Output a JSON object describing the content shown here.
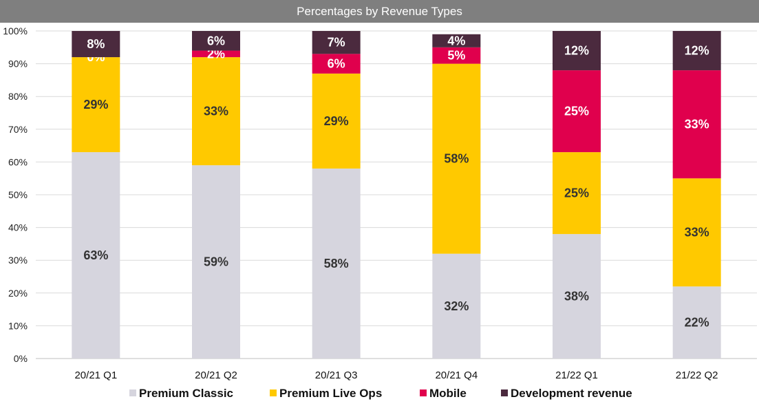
{
  "chart_data": {
    "type": "bar",
    "stacked": true,
    "title": "Percentages by Revenue Types",
    "categories": [
      "20/21 Q1",
      "20/21 Q2",
      "20/21 Q3",
      "20/21 Q4",
      "21/22 Q1",
      "21/22 Q2"
    ],
    "ylim": [
      0,
      100
    ],
    "yticks": [
      "0%",
      "10%",
      "20%",
      "30%",
      "40%",
      "50%",
      "60%",
      "70%",
      "80%",
      "90%",
      "100%"
    ],
    "grid": true,
    "legend_position": "bottom",
    "series": [
      {
        "name": "Premium Classic",
        "color": "#d6d5de",
        "label_color": "#333333",
        "values": [
          63,
          59,
          58,
          32,
          38,
          22
        ]
      },
      {
        "name": "Premium Live Ops",
        "color": "#ffc900",
        "label_color": "#333333",
        "values": [
          29,
          33,
          29,
          58,
          25,
          33
        ]
      },
      {
        "name": "Mobile",
        "color": "#e0004d",
        "label_color": "#ffffff",
        "values": [
          0,
          2,
          6,
          5,
          25,
          33
        ]
      },
      {
        "name": "Development revenue",
        "color": "#4b2a3e",
        "label_color": "#ffffff",
        "values": [
          8,
          6,
          7,
          4,
          12,
          12
        ]
      }
    ]
  }
}
